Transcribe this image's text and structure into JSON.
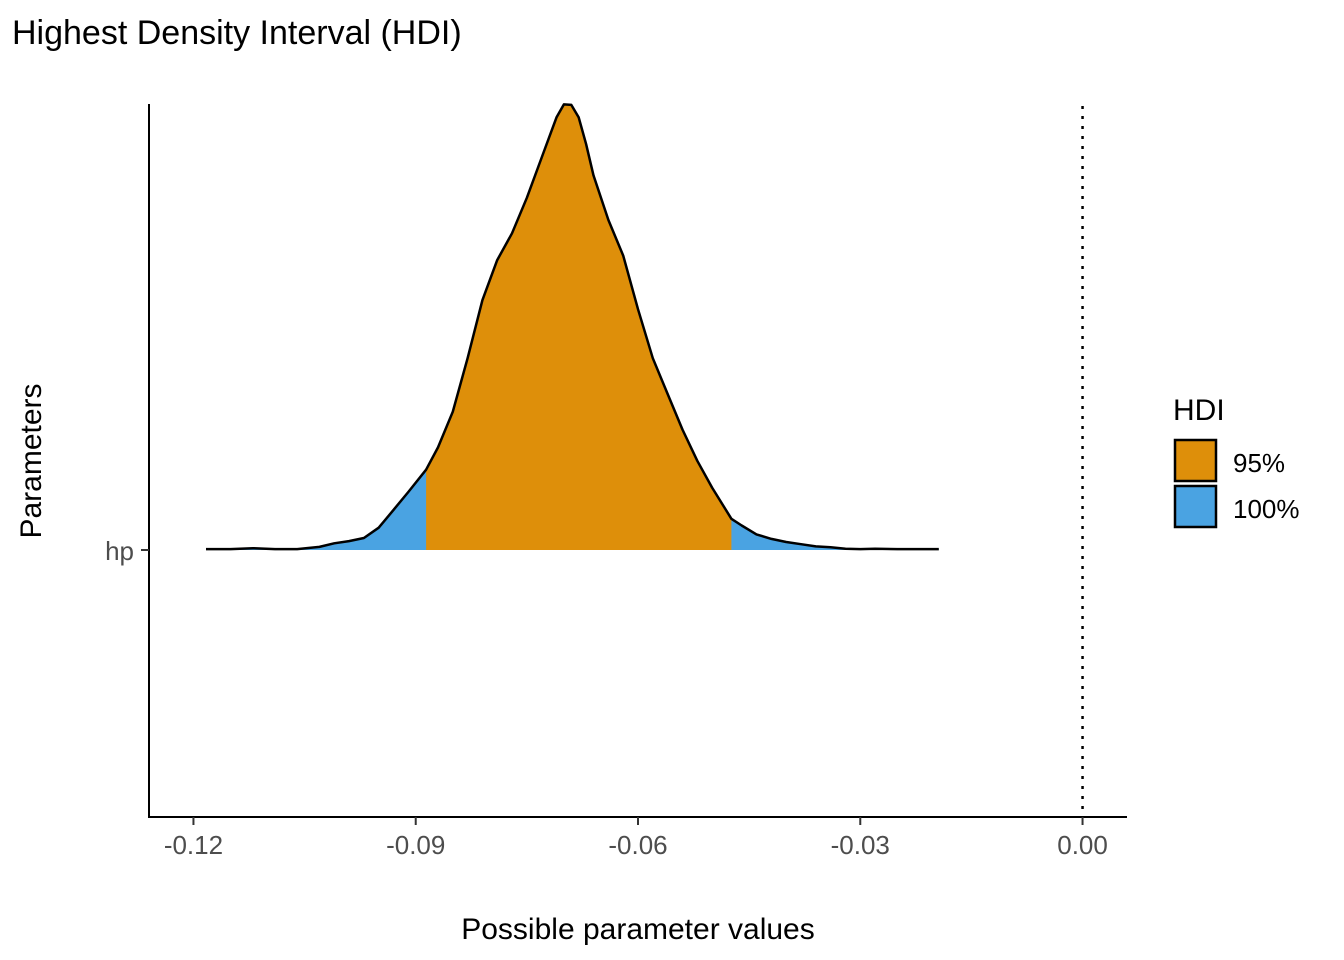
{
  "chart_data": {
    "type": "area",
    "title": "Highest Density Interval (HDI)",
    "xlabel": "Possible parameter values",
    "ylabel": "Parameters",
    "xlim": [
      -0.126,
      0.006
    ],
    "x_ticks": [
      -0.12,
      -0.09,
      -0.06,
      -0.03,
      0.0
    ],
    "x_tick_labels": [
      "-0.12",
      "-0.09",
      "-0.06",
      "-0.03",
      "0.00"
    ],
    "y_categories": [
      "hp"
    ],
    "reference_line": {
      "x": 0.0,
      "style": "dotted"
    },
    "grid": false,
    "legend": {
      "title": "HDI",
      "position": "right",
      "entries": [
        {
          "label": "95%",
          "color": "#DE8F0A"
        },
        {
          "label": "100%",
          "color": "#4AA3E2"
        }
      ]
    },
    "intervals": [
      {
        "label": "95%",
        "range": [
          -0.0886,
          -0.0474
        ],
        "color": "#DE8F0A"
      },
      {
        "label": "100%",
        "range": [
          -0.1183,
          -0.0194
        ],
        "color": "#4AA3E2"
      }
    ],
    "series": [
      {
        "parameter": "hp",
        "x": [
          -0.1183,
          -0.115,
          -0.112,
          -0.109,
          -0.106,
          -0.103,
          -0.101,
          -0.099,
          -0.097,
          -0.095,
          -0.093,
          -0.091,
          -0.0886,
          -0.087,
          -0.085,
          -0.083,
          -0.081,
          -0.079,
          -0.077,
          -0.075,
          -0.073,
          -0.071,
          -0.07,
          -0.069,
          -0.068,
          -0.067,
          -0.066,
          -0.064,
          -0.062,
          -0.06,
          -0.058,
          -0.056,
          -0.054,
          -0.052,
          -0.05,
          -0.0474,
          -0.046,
          -0.044,
          -0.042,
          -0.04,
          -0.038,
          -0.036,
          -0.034,
          -0.032,
          -0.03,
          -0.028,
          -0.025,
          -0.022,
          -0.0194
        ],
        "density": [
          0.002,
          0.002,
          0.004,
          0.002,
          0.002,
          0.007,
          0.015,
          0.02,
          0.027,
          0.05,
          0.09,
          0.13,
          0.18,
          0.23,
          0.31,
          0.43,
          0.56,
          0.65,
          0.71,
          0.79,
          0.88,
          0.97,
          0.999,
          0.998,
          0.97,
          0.91,
          0.84,
          0.74,
          0.66,
          0.54,
          0.43,
          0.35,
          0.27,
          0.2,
          0.14,
          0.07,
          0.055,
          0.035,
          0.025,
          0.018,
          0.013,
          0.008,
          0.006,
          0.003,
          0.002,
          0.003,
          0.002,
          0.002,
          0.002
        ]
      }
    ]
  }
}
